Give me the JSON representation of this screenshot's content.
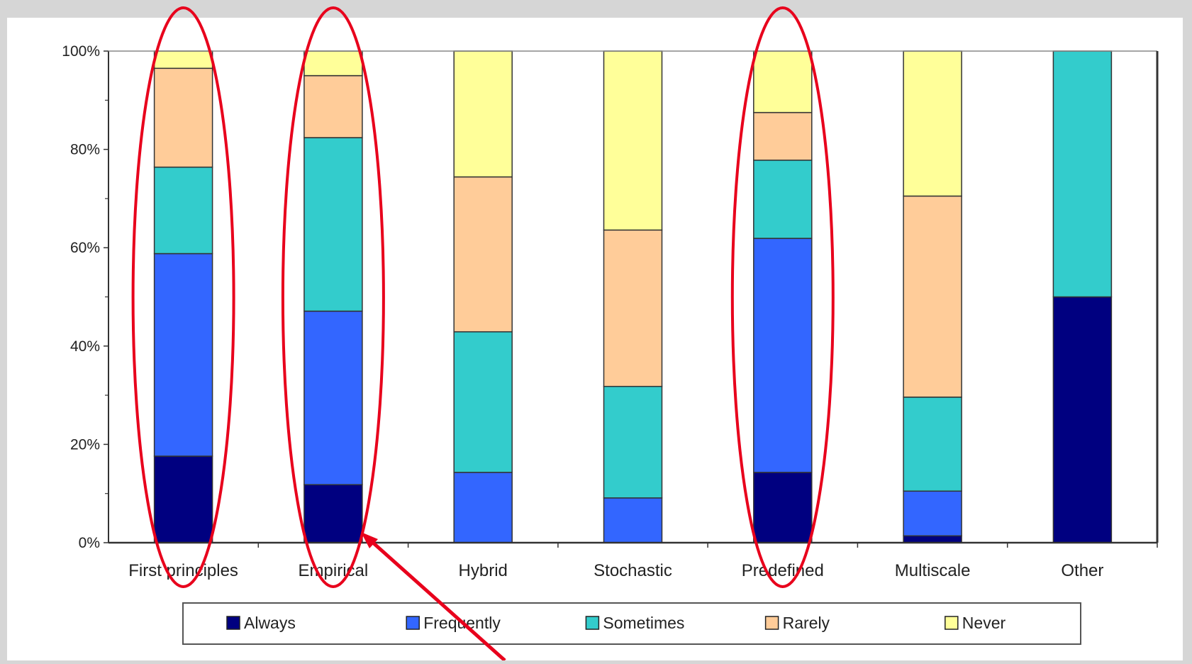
{
  "chart_data": {
    "type": "bar",
    "stacked": true,
    "ylim": [
      0,
      100
    ],
    "yticks": [
      "0%",
      "20%",
      "40%",
      "60%",
      "80%",
      "100%"
    ],
    "categories": [
      "First principles",
      "Empirical",
      "Hybrid",
      "Stochastic",
      "Predefined",
      "Multiscale",
      "Other"
    ],
    "series": [
      {
        "name": "Always",
        "color": "#000080",
        "values": [
          17.6,
          11.8,
          0,
          0,
          14.3,
          1.4,
          50
        ]
      },
      {
        "name": "Frequently",
        "color": "#3366ff",
        "values": [
          41.2,
          35.3,
          14.3,
          9.1,
          47.6,
          9.1,
          0
        ]
      },
      {
        "name": "Sometimes",
        "color": "#33cccc",
        "values": [
          17.6,
          35.3,
          28.6,
          22.7,
          15.9,
          19.1,
          50
        ]
      },
      {
        "name": "Rarely",
        "color": "#ffcc99",
        "values": [
          20.1,
          12.6,
          31.5,
          31.8,
          9.7,
          40.9,
          0
        ]
      },
      {
        "name": "Never",
        "color": "#ffff99",
        "values": [
          3.5,
          5.0,
          25.6,
          36.4,
          12.5,
          29.5,
          0
        ]
      }
    ],
    "legend_position": "bottom",
    "grid": false,
    "highlighted_categories": [
      "First principles",
      "Empirical",
      "Predefined"
    ],
    "highlight_color": "#e8001c"
  }
}
